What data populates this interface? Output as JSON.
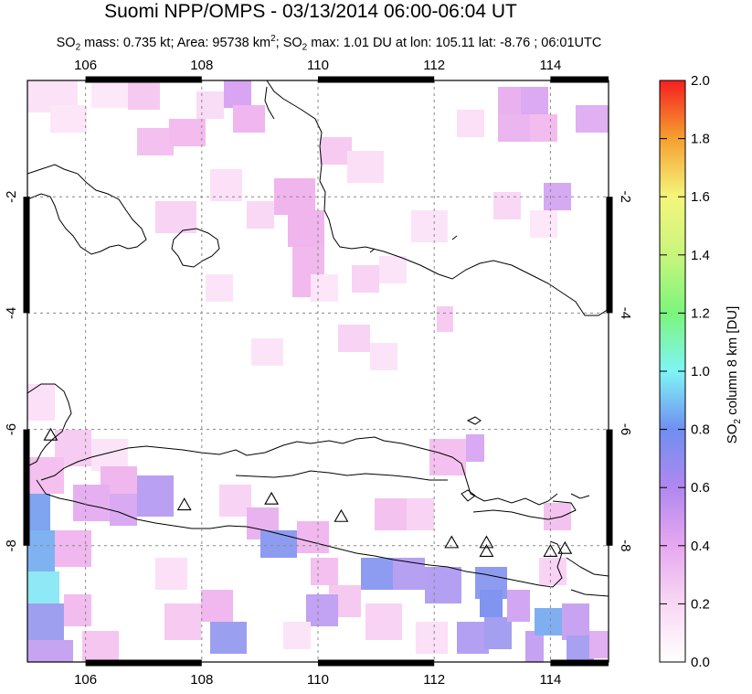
{
  "title": "Suomi NPP/OMPS - 03/13/2014 06:00-06:04 UT",
  "subtitle": {
    "so2_mass_label": "SO",
    "so2_mass_text": " mass: 0.735 kt; Area: 95738 km",
    "area_sup": "2",
    "max_label": "; SO",
    "max_text": " max: 1.01 DU at lon: 105.11 lat: -8.76 ; 06:01UTC",
    "sub2": "2"
  },
  "map": {
    "lon_ticks": [
      "106",
      "108",
      "110",
      "112",
      "114"
    ],
    "lon_values": [
      106,
      108,
      110,
      112,
      114
    ],
    "lat_ticks": [
      "-2",
      "-4",
      "-6",
      "-8"
    ],
    "lat_values": [
      -2,
      -4,
      -6,
      -8
    ],
    "lon_range": [
      105,
      115
    ],
    "lat_range": [
      -10,
      0
    ],
    "grid": "dashed",
    "volcano_markers": [
      {
        "lon": 105.4,
        "lat": -6.1
      },
      {
        "lon": 107.7,
        "lat": -7.3
      },
      {
        "lon": 109.2,
        "lat": -7.2
      },
      {
        "lon": 110.4,
        "lat": -7.5
      },
      {
        "lon": 112.3,
        "lat": -7.95
      },
      {
        "lon": 112.9,
        "lat": -7.95
      },
      {
        "lon": 112.9,
        "lat": -8.1
      },
      {
        "lon": 114.0,
        "lat": -8.1
      },
      {
        "lon": 114.25,
        "lat": -8.05
      }
    ]
  },
  "colorbar": {
    "ticks": [
      "2.0",
      "1.8",
      "1.6",
      "1.4",
      "1.2",
      "1.0",
      "0.8",
      "0.6",
      "0.4",
      "0.2",
      "0.0"
    ],
    "label_prefix": "SO",
    "label_sub": "2",
    "label_suffix": " column 8 km [DU]",
    "colors": [
      "#ffffff",
      "#f5c8f0",
      "#c78df0",
      "#6f8ff0",
      "#7ff5f5",
      "#7cf57c",
      "#f5f57c",
      "#f5a030",
      "#f51f1f"
    ]
  }
}
